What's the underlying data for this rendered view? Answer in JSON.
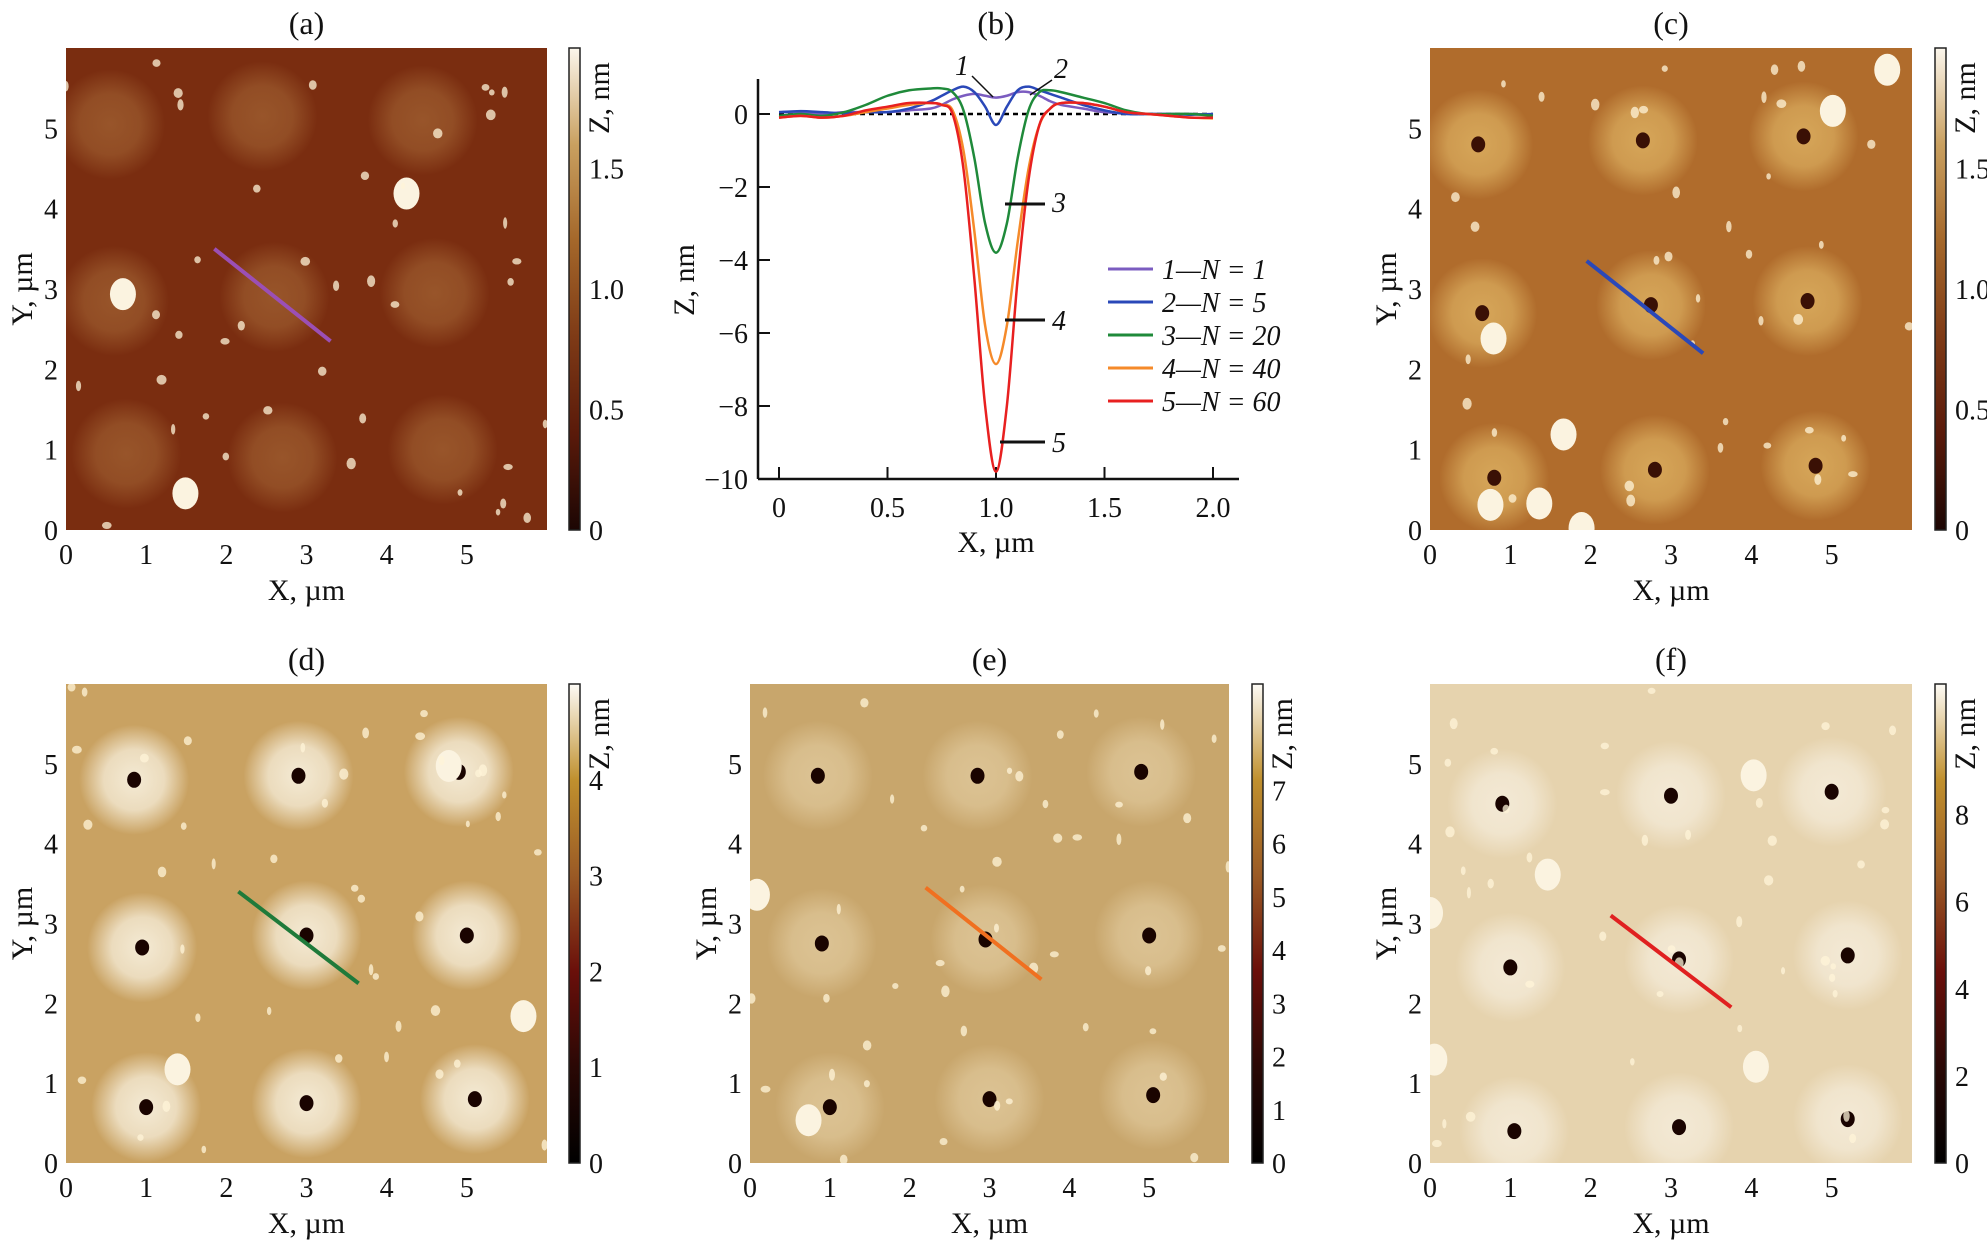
{
  "panels": [
    {
      "id": "a",
      "title": "(a)",
      "xlabel": "X, µm",
      "ylabel": "Y, µm",
      "cblabel": "Z, nm",
      "xticks": [
        "0",
        "1",
        "2",
        "3",
        "4",
        "5"
      ],
      "yticks": [
        "0",
        "1",
        "2",
        "3",
        "4",
        "5"
      ],
      "cb_range": [
        0,
        2
      ],
      "cb_ticks": [
        "0",
        "0.5",
        "1.0",
        "1.5"
      ],
      "cb_tick_values": [
        0,
        0.5,
        1.0,
        1.5
      ],
      "cmap": [
        "#1c0604",
        "#5a1a0a",
        "#7e3a16",
        "#a4672a",
        "#c9a060",
        "#fbf6ec"
      ],
      "bg": "#7a2d10",
      "halo": "#98552a",
      "pit": null,
      "sites": [
        [
          0.55,
          5.05
        ],
        [
          2.45,
          5.15
        ],
        [
          4.45,
          5.1
        ],
        [
          0.6,
          2.85
        ],
        [
          2.6,
          2.9
        ],
        [
          4.6,
          2.95
        ],
        [
          0.75,
          0.95
        ],
        [
          2.7,
          0.9
        ],
        [
          4.7,
          1.0
        ]
      ],
      "profile": {
        "from": [
          1.85,
          3.5
        ],
        "to": [
          3.3,
          2.35
        ],
        "color": "#9b4fb5"
      }
    },
    {
      "id": "c",
      "title": "(c)",
      "xlabel": "X, µm",
      "ylabel": "Y, µm",
      "cblabel": "Z, nm",
      "xticks": [
        "0",
        "1",
        "2",
        "3",
        "4",
        "5"
      ],
      "yticks": [
        "0",
        "1",
        "2",
        "3",
        "4",
        "5"
      ],
      "cb_range": [
        0,
        2
      ],
      "cb_ticks": [
        "0",
        "0.5",
        "1.0",
        "1.5"
      ],
      "cb_tick_values": [
        0,
        0.5,
        1.0,
        1.5
      ],
      "cmap": [
        "#1c0604",
        "#5a1a0a",
        "#7e3a16",
        "#a4672a",
        "#c9a060",
        "#fbf6ec"
      ],
      "bg": "#b06c2c",
      "halo": "#d6a659",
      "pit": "#3a1005",
      "sites": [
        [
          0.6,
          4.8
        ],
        [
          2.65,
          4.85
        ],
        [
          4.65,
          4.9
        ],
        [
          0.65,
          2.7
        ],
        [
          2.75,
          2.8
        ],
        [
          4.7,
          2.85
        ],
        [
          0.8,
          0.65
        ],
        [
          2.8,
          0.75
        ],
        [
          4.8,
          0.8
        ]
      ],
      "profile": {
        "from": [
          1.95,
          3.35
        ],
        "to": [
          3.4,
          2.2
        ],
        "color": "#2a48b8"
      }
    },
    {
      "id": "d",
      "title": "(d)",
      "xlabel": "X, µm",
      "ylabel": "Y, µm",
      "cblabel": "Z, nm",
      "xticks": [
        "0",
        "1",
        "2",
        "3",
        "4",
        "5"
      ],
      "yticks": [
        "0",
        "1",
        "2",
        "3",
        "4",
        "5"
      ],
      "cb_range": [
        0,
        5
      ],
      "cb_ticks": [
        "0",
        "1",
        "2",
        "3",
        "4"
      ],
      "cb_tick_values": [
        0,
        1,
        2,
        3,
        4
      ],
      "cmap": [
        "#000000",
        "#2a0805",
        "#6a0f0a",
        "#9a5a25",
        "#c0902e",
        "#fdfbf6"
      ],
      "bg": "#c9a262",
      "halo": "#f4ead4",
      "pit": "#1a0400",
      "sites": [
        [
          0.85,
          4.8
        ],
        [
          2.9,
          4.85
        ],
        [
          4.9,
          4.9
        ],
        [
          0.95,
          2.7
        ],
        [
          3.0,
          2.85
        ],
        [
          5.0,
          2.85
        ],
        [
          1.0,
          0.7
        ],
        [
          3.0,
          0.75
        ],
        [
          5.1,
          0.8
        ]
      ],
      "profile": {
        "from": [
          2.15,
          3.4
        ],
        "to": [
          3.65,
          2.25
        ],
        "color": "#1f7a3a"
      }
    },
    {
      "id": "e",
      "title": "(e)",
      "xlabel": "X, µm",
      "ylabel": "Y, µm",
      "cblabel": "Z, nm",
      "xticks": [
        "0",
        "1",
        "2",
        "3",
        "4",
        "5"
      ],
      "yticks": [
        "0",
        "1",
        "2",
        "3",
        "4",
        "5"
      ],
      "cb_range": [
        0,
        9
      ],
      "cb_ticks": [
        "0",
        "1",
        "2",
        "3",
        "4",
        "5",
        "6",
        "7"
      ],
      "cb_tick_values": [
        0,
        1,
        2,
        3,
        4,
        5,
        6,
        7
      ],
      "cmap": [
        "#000000",
        "#2a0805",
        "#6a0f0a",
        "#9a5a25",
        "#c0902e",
        "#fdfbf6"
      ],
      "bg": "#c8a66c",
      "halo": "#dcc394",
      "pit": "#1a0400",
      "sites": [
        [
          0.85,
          4.85
        ],
        [
          2.85,
          4.85
        ],
        [
          4.9,
          4.9
        ],
        [
          0.9,
          2.75
        ],
        [
          2.95,
          2.8
        ],
        [
          5.0,
          2.85
        ],
        [
          1.0,
          0.7
        ],
        [
          3.0,
          0.8
        ],
        [
          5.05,
          0.85
        ]
      ],
      "profile": {
        "from": [
          2.2,
          3.45
        ],
        "to": [
          3.65,
          2.3
        ],
        "color": "#f07020"
      }
    },
    {
      "id": "f",
      "title": "(f)",
      "xlabel": "X, µm",
      "ylabel": "Y, µm",
      "cblabel": "Z, nm",
      "xticks": [
        "0",
        "1",
        "2",
        "3",
        "4",
        "5"
      ],
      "yticks": [
        "0",
        "1",
        "2",
        "3",
        "4",
        "5"
      ],
      "cb_range": [
        0,
        11
      ],
      "cb_ticks": [
        "0",
        "2",
        "4",
        "6",
        "8"
      ],
      "cb_tick_values": [
        0,
        2,
        4,
        6,
        8
      ],
      "cmap": [
        "#000000",
        "#2a0805",
        "#6a0f0a",
        "#9a5a25",
        "#c0902e",
        "#fdfbf6"
      ],
      "bg": "#e6d3ae",
      "halo": "#f3e9d5",
      "pit": "#1a0400",
      "sites": [
        [
          0.9,
          4.5
        ],
        [
          3.0,
          4.6
        ],
        [
          5.0,
          4.65
        ],
        [
          1.0,
          2.45
        ],
        [
          3.1,
          2.55
        ],
        [
          5.2,
          2.6
        ],
        [
          1.05,
          0.4
        ],
        [
          3.1,
          0.45
        ],
        [
          5.2,
          0.55
        ]
      ],
      "profile": {
        "from": [
          2.25,
          3.1
        ],
        "to": [
          3.75,
          1.95
        ],
        "color": "#e02020"
      }
    }
  ],
  "chart_data": {
    "type": "line",
    "title": "(b)",
    "xlabel": "X, µm",
    "ylabel": "Z, nm",
    "xlim": [
      -0.05,
      2.1
    ],
    "ylim": [
      -10,
      1
    ],
    "xticks": [
      0,
      0.5,
      1.0,
      1.5,
      2.0
    ],
    "xtick_labels": [
      "0",
      "0.5",
      "1.0",
      "1.5",
      "2.0"
    ],
    "yticks": [
      0,
      -2,
      -4,
      -6,
      -8,
      -10
    ],
    "ytick_labels": [
      "0",
      "−2",
      "−4",
      "−6",
      "−8",
      "−10"
    ],
    "grid": false,
    "reference_line": {
      "y": 0,
      "style": "dashed",
      "color": "#000000"
    },
    "legend_position": "right",
    "x": [
      0,
      0.1,
      0.2,
      0.3,
      0.4,
      0.5,
      0.6,
      0.7,
      0.75,
      0.8,
      0.85,
      0.9,
      0.95,
      1.0,
      1.05,
      1.1,
      1.15,
      1.2,
      1.25,
      1.3,
      1.4,
      1.5,
      1.6,
      1.7,
      1.8,
      1.9,
      2.0
    ],
    "series": [
      {
        "name": "1—N = 1",
        "label": "1",
        "color": "#7b5cc0",
        "values": [
          0.05,
          0.05,
          0.0,
          0.05,
          0.05,
          0.05,
          0.1,
          0.15,
          0.25,
          0.4,
          0.5,
          0.55,
          0.5,
          0.45,
          0.5,
          0.6,
          0.6,
          0.5,
          0.35,
          0.25,
          0.15,
          0.05,
          0.02,
          0.0,
          0.0,
          0.0,
          -0.02
        ]
      },
      {
        "name": "2—N = 5",
        "label": "2",
        "color": "#2a48b8",
        "values": [
          0.05,
          0.08,
          0.05,
          0.02,
          0.05,
          0.05,
          0.15,
          0.35,
          0.5,
          0.65,
          0.75,
          0.6,
          0.2,
          -0.3,
          0.2,
          0.65,
          0.75,
          0.65,
          0.55,
          0.45,
          0.25,
          0.1,
          0.0,
          0.0,
          0.0,
          -0.02,
          0.0
        ]
      },
      {
        "name": "3—N = 20",
        "label": "3",
        "color": "#1f8a3a",
        "values": [
          -0.05,
          0.0,
          -0.05,
          0.05,
          0.25,
          0.5,
          0.65,
          0.7,
          0.7,
          0.6,
          0.1,
          -1.2,
          -3.0,
          -3.8,
          -3.0,
          -1.2,
          0.1,
          0.6,
          0.65,
          0.6,
          0.45,
          0.3,
          0.1,
          0.0,
          0.0,
          0.0,
          -0.05
        ]
      },
      {
        "name": "4—N = 40",
        "label": "4",
        "color": "#f58a2a",
        "values": [
          -0.1,
          -0.05,
          -0.1,
          -0.05,
          0.05,
          0.15,
          0.25,
          0.3,
          0.25,
          0.1,
          -1.0,
          -3.2,
          -5.8,
          -6.85,
          -5.8,
          -3.5,
          -1.5,
          -0.3,
          0.15,
          0.3,
          0.3,
          0.2,
          0.05,
          0.0,
          -0.05,
          -0.1,
          -0.12
        ]
      },
      {
        "name": "5—N = 60",
        "label": "5",
        "color": "#e82020",
        "values": [
          -0.1,
          -0.05,
          -0.1,
          -0.05,
          0.1,
          0.2,
          0.3,
          0.3,
          0.25,
          0.0,
          -1.5,
          -4.5,
          -8.0,
          -9.8,
          -8.0,
          -4.5,
          -1.8,
          -0.3,
          0.15,
          0.3,
          0.3,
          0.2,
          0.05,
          0.0,
          -0.05,
          -0.1,
          -0.1
        ]
      }
    ],
    "annotations": [
      "1",
      "2",
      "3",
      "4",
      "5"
    ]
  }
}
